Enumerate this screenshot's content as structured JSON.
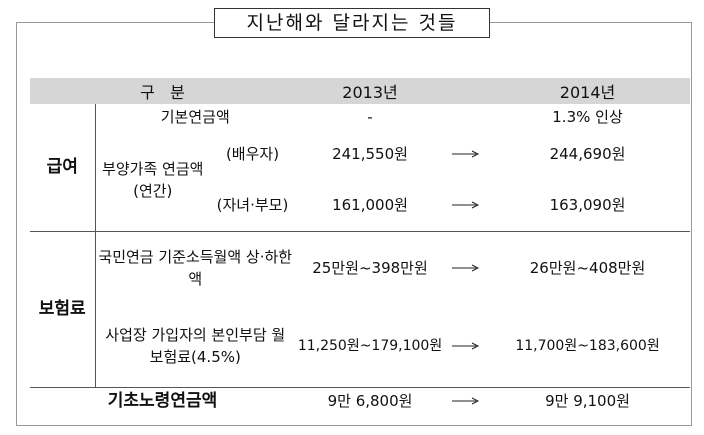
{
  "title": "지난해와 달라지는 것들",
  "table": {
    "header": [
      "구   분",
      "2013년",
      "2014년"
    ],
    "rows": [
      {
        "group": "급여",
        "item": "기본연금액",
        "y2013": "-",
        "y2014": "1.3% 인상"
      },
      {
        "item": "부양가족 연금액(연간)",
        "sub": "(배우자)",
        "y2013": "241,550원",
        "y2014": "244,690원"
      },
      {
        "sub": "(자녀·부모)",
        "y2013": "161,000원",
        "y2014": "163,090원"
      },
      {
        "group": "보험료",
        "item": "국민연금 기준소득월액 상·하한액",
        "y2013": "25만원~398만원",
        "y2014": "26만원~408만원"
      },
      {
        "item": "사업장 가입자의 본인부담 월 보험료(4.5%)",
        "y2013": "11,250원~179,100원",
        "y2014": "11,700원~183,600원"
      },
      {
        "item": "기초노령연금액",
        "y2013": "9만 6,800원",
        "y2014": "9만 9,100원"
      }
    ]
  }
}
